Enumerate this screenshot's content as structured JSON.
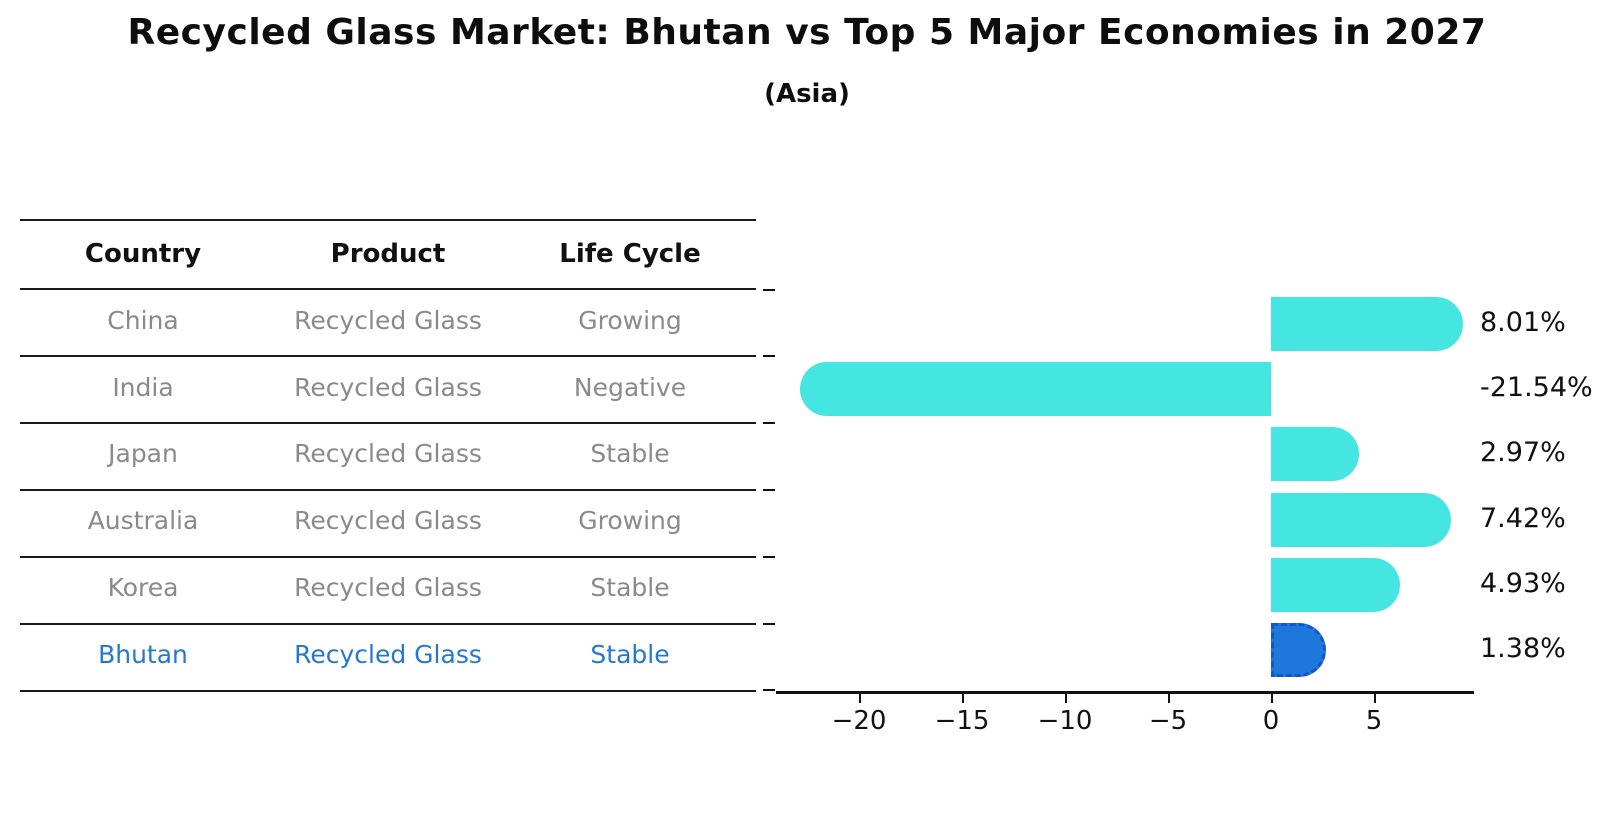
{
  "title": "Recycled Glass Market: Bhutan vs Top 5 Major Economies in 2027",
  "subtitle": "(Asia)",
  "table": {
    "headers": [
      "Country",
      "Product",
      "Life Cycle"
    ],
    "rows": [
      {
        "country": "China",
        "product": "Recycled Glass",
        "life_cycle": "Growing",
        "highlight": false
      },
      {
        "country": "India",
        "product": "Recycled Glass",
        "life_cycle": "Negative",
        "highlight": false
      },
      {
        "country": "Japan",
        "product": "Recycled Glass",
        "life_cycle": "Stable",
        "highlight": false
      },
      {
        "country": "Australia",
        "product": "Recycled Glass",
        "life_cycle": "Growing",
        "highlight": false
      },
      {
        "country": "Korea",
        "product": "Recycled Glass",
        "life_cycle": "Stable",
        "highlight": false
      },
      {
        "country": "Bhutan",
        "product": "Recycled Glass",
        "life_cycle": "Stable",
        "highlight": true
      }
    ]
  },
  "chart_data": {
    "type": "bar",
    "orientation": "horizontal",
    "categories": [
      "China",
      "India",
      "Japan",
      "Australia",
      "Korea",
      "Bhutan"
    ],
    "values": [
      8.01,
      -21.54,
      2.97,
      7.42,
      4.93,
      1.38
    ],
    "value_labels": [
      "8.01%",
      "-21.54%",
      "2.97%",
      "7.42%",
      "4.93%",
      "1.38%"
    ],
    "highlight_index": 5,
    "x_tick_labels": [
      "−20",
      "−15",
      "−10",
      "−5",
      "0",
      "5"
    ],
    "x_tick_values": [
      -20,
      -15,
      -10,
      -5,
      0,
      5
    ],
    "xlim": [
      -24,
      9.85
    ],
    "grid": false,
    "legend": "none",
    "bar_color": "#45e6e2",
    "highlight_bar_color": "#1e78dc",
    "highlight_border_color": "#1456c8",
    "highlight_text_color": "#2478d4",
    "text_color": "#111111",
    "muted_text_color": "#8a8a8a"
  }
}
